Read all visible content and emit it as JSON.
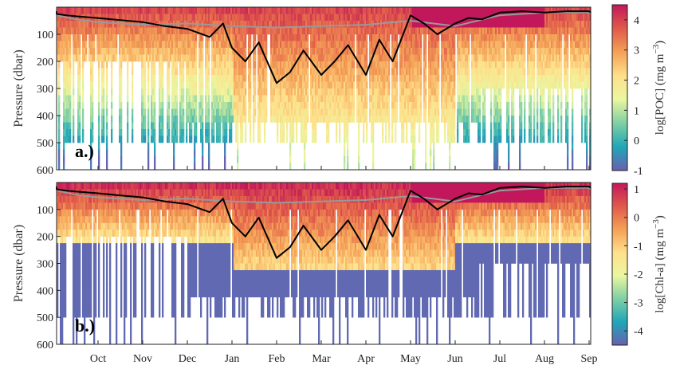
{
  "chart_data": [
    {
      "type": "heatmap",
      "panel_label": "a.)",
      "ylabel": "Pressure (dbar)",
      "colorbar_label": "log[POC] (mg m⁻³)",
      "colorbar_label_parts": [
        "log[POC] (mg m",
        "−3",
        ")"
      ],
      "ylim": [
        600,
        0
      ],
      "y_ticks": [
        100,
        200,
        300,
        400,
        500,
        600
      ],
      "x_months": [
        "Oct",
        "Nov",
        "Dec",
        "Jan",
        "Feb",
        "Mar",
        "Apr",
        "May",
        "Jun",
        "Jul",
        "Aug",
        "Sep"
      ],
      "clim": [
        -1,
        4.5
      ],
      "colorbar_ticks": [
        -1,
        0,
        1,
        2,
        3,
        4
      ],
      "colormap": [
        "#6a5fb0",
        "#1fa7b8",
        "#7fcfa4",
        "#ebf6a0",
        "#fee08b",
        "#f4a157",
        "#e05a4a",
        "#c2185b"
      ],
      "mixed_layer_depth": {
        "color": "#000000",
        "month_index": [
          -1.2,
          -1.0,
          -0.7,
          -0.4,
          0.0,
          0.5,
          1.0,
          1.5,
          2.0,
          2.5,
          2.8,
          3.0,
          3.3,
          3.6,
          4.0,
          4.3,
          4.6,
          5.0,
          5.3,
          5.6,
          6.0,
          6.3,
          6.6,
          7.0,
          7.3,
          7.6,
          8.0,
          8.3,
          8.6,
          9.0,
          9.5,
          10.0,
          10.5,
          11.0,
          11.3
        ],
        "pressure": [
          15,
          25,
          30,
          35,
          40,
          48,
          55,
          70,
          80,
          110,
          60,
          150,
          200,
          130,
          280,
          240,
          160,
          250,
          200,
          140,
          250,
          120,
          200,
          30,
          60,
          100,
          60,
          40,
          45,
          20,
          15,
          20,
          15,
          15,
          20
        ]
      },
      "temperature_mld": {
        "color": "#999999",
        "month_index": [
          -1.2,
          -0.5,
          0.0,
          1.0,
          2.0,
          3.0,
          4.0,
          5.0,
          6.0,
          7.0,
          7.5,
          8.0,
          9.0,
          10.0,
          11.0,
          11.3
        ],
        "pressure": [
          30,
          45,
          55,
          65,
          60,
          70,
          75,
          70,
          65,
          50,
          60,
          70,
          30,
          20,
          20,
          25
        ]
      }
    },
    {
      "type": "heatmap",
      "panel_label": "b.)",
      "ylabel": "Pressure (dbar)",
      "colorbar_label": "log[Chl-a] (mg m⁻³)",
      "colorbar_label_parts": [
        "log[Chl-a] (mg m",
        "−3",
        ")"
      ],
      "ylim": [
        600,
        0
      ],
      "y_ticks": [
        100,
        200,
        300,
        400,
        500,
        600
      ],
      "x_months": [
        "Oct",
        "Nov",
        "Dec",
        "Jan",
        "Feb",
        "Mar",
        "Apr",
        "May",
        "Jun",
        "Jul",
        "Aug",
        "Sep"
      ],
      "clim": [
        -4.5,
        1.2
      ],
      "colorbar_ticks": [
        -4,
        -3,
        -2,
        -1,
        0,
        1
      ],
      "colormap": [
        "#6a5fb0",
        "#1fa7b8",
        "#7fcfa4",
        "#ebf6a0",
        "#fee08b",
        "#f4a157",
        "#e05a4a",
        "#c2185b"
      ],
      "mixed_layer_depth": {
        "color": "#000000",
        "month_index": [
          -1.2,
          -1.0,
          -0.7,
          -0.4,
          0.0,
          0.5,
          1.0,
          1.5,
          2.0,
          2.5,
          2.8,
          3.0,
          3.3,
          3.6,
          4.0,
          4.3,
          4.6,
          5.0,
          5.3,
          5.6,
          6.0,
          6.3,
          6.6,
          7.0,
          7.3,
          7.6,
          8.0,
          8.3,
          8.6,
          9.0,
          9.5,
          10.0,
          10.5,
          11.0,
          11.3
        ],
        "pressure": [
          15,
          25,
          30,
          35,
          40,
          48,
          55,
          70,
          80,
          110,
          60,
          150,
          200,
          130,
          280,
          240,
          160,
          250,
          200,
          140,
          250,
          120,
          200,
          30,
          60,
          100,
          60,
          40,
          45,
          20,
          15,
          20,
          15,
          15,
          20
        ]
      },
      "temperature_mld": {
        "color": "#999999",
        "month_index": [
          -1.2,
          -0.5,
          0.0,
          1.0,
          2.0,
          3.0,
          4.0,
          5.0,
          6.0,
          7.0,
          7.5,
          8.0,
          9.0,
          10.0,
          11.0,
          11.3
        ],
        "pressure": [
          30,
          45,
          55,
          65,
          60,
          70,
          75,
          70,
          65,
          50,
          60,
          70,
          30,
          20,
          20,
          25
        ]
      }
    }
  ]
}
